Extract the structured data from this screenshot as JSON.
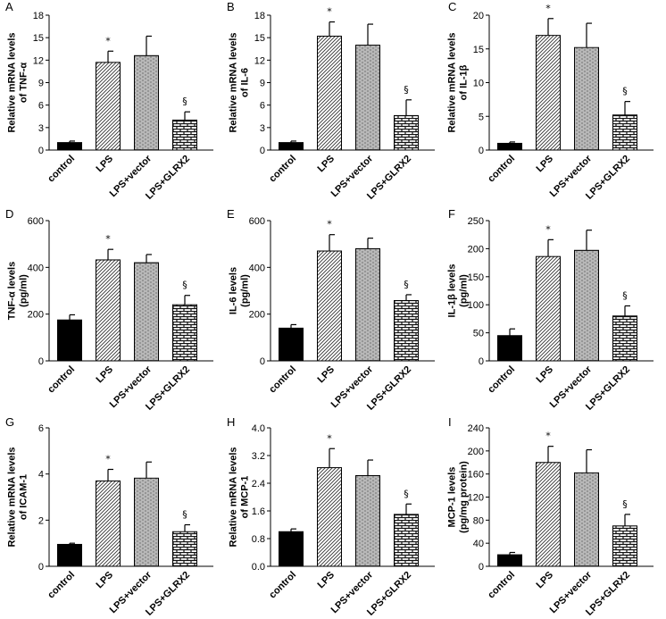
{
  "chart_data": [
    {
      "panel": "A",
      "type": "bar",
      "categories": [
        "control",
        "LPS",
        "LPS+vector",
        "LPS+GLRX2"
      ],
      "values": [
        1.0,
        11.7,
        12.6,
        4.0
      ],
      "errors": [
        0.2,
        1.5,
        2.6,
        1.1
      ],
      "ylabel": [
        "Relative mRNA levels",
        "of TNF-α"
      ],
      "ylim": [
        0,
        18
      ],
      "yticks": [
        "0",
        "3",
        "6",
        "9",
        "12",
        "15",
        "18"
      ],
      "annotations": [
        "",
        "*",
        "",
        "§"
      ]
    },
    {
      "panel": "B",
      "type": "bar",
      "categories": [
        "control",
        "LPS",
        "LPS+vector",
        "LPS+GLRX2"
      ],
      "values": [
        1.0,
        15.2,
        14.0,
        4.6
      ],
      "errors": [
        0.2,
        1.9,
        2.8,
        2.1
      ],
      "ylabel": [
        "Relative mRNA levels",
        "of IL-6"
      ],
      "ylim": [
        0,
        18
      ],
      "yticks": [
        "0",
        "3",
        "6",
        "9",
        "12",
        "15",
        "18"
      ],
      "annotations": [
        "",
        "*",
        "",
        "§"
      ]
    },
    {
      "panel": "C",
      "type": "bar",
      "categories": [
        "control",
        "LPS",
        "LPS+vector",
        "LPS+GLRX2"
      ],
      "values": [
        1.0,
        17.0,
        15.2,
        5.2
      ],
      "errors": [
        0.2,
        2.5,
        3.6,
        2.0
      ],
      "ylabel": [
        "Relative mRNA levels",
        "of IL-1β"
      ],
      "ylim": [
        0,
        20
      ],
      "yticks": [
        "0",
        "5",
        "10",
        "15",
        "20"
      ],
      "annotations": [
        "",
        "*",
        "",
        "§"
      ]
    },
    {
      "panel": "D",
      "type": "bar",
      "categories": [
        "control",
        "LPS",
        "LPS+vector",
        "LPS+GLRX2"
      ],
      "values": [
        175,
        432,
        420,
        240
      ],
      "errors": [
        22,
        45,
        35,
        40
      ],
      "ylabel": [
        "TNF-α levels",
        "(pg/ml)"
      ],
      "ylim": [
        0,
        600
      ],
      "yticks": [
        "0",
        "200",
        "400",
        "600"
      ],
      "annotations": [
        "",
        "*",
        "",
        "§"
      ]
    },
    {
      "panel": "E",
      "type": "bar",
      "categories": [
        "control",
        "LPS",
        "LPS+vector",
        "LPS+GLRX2"
      ],
      "values": [
        140,
        470,
        480,
        258
      ],
      "errors": [
        15,
        70,
        45,
        25
      ],
      "ylabel": [
        "IL-6 levels",
        "(pg/ml)"
      ],
      "ylim": [
        0,
        600
      ],
      "yticks": [
        "0",
        "200",
        "400",
        "600"
      ],
      "annotations": [
        "",
        "*",
        "",
        "§"
      ]
    },
    {
      "panel": "F",
      "type": "bar",
      "categories": [
        "control",
        "LPS",
        "LPS+vector",
        "LPS+GLRX2"
      ],
      "values": [
        45,
        186,
        197,
        80
      ],
      "errors": [
        12,
        30,
        36,
        18
      ],
      "ylabel": [
        "IL-1β levels",
        "(pg/ml)"
      ],
      "ylim": [
        0,
        250
      ],
      "yticks": [
        "0",
        "50",
        "100",
        "150",
        "200",
        "250"
      ],
      "annotations": [
        "",
        "*",
        "",
        "§"
      ]
    },
    {
      "panel": "G",
      "type": "bar",
      "categories": [
        "control",
        "LPS",
        "LPS+vector",
        "LPS+GLRX2"
      ],
      "values": [
        0.95,
        3.7,
        3.82,
        1.5
      ],
      "errors": [
        0.05,
        0.5,
        0.7,
        0.3
      ],
      "ylabel": [
        "Relative mRNA levels",
        "of ICAM-1"
      ],
      "ylim": [
        0,
        6
      ],
      "yticks": [
        "0",
        "2",
        "4",
        "6"
      ],
      "annotations": [
        "",
        "*",
        "",
        "§"
      ]
    },
    {
      "panel": "H",
      "type": "bar",
      "categories": [
        "control",
        "LPS",
        "LPS+vector",
        "LPS+GLRX2"
      ],
      "values": [
        1.0,
        2.85,
        2.62,
        1.5
      ],
      "errors": [
        0.08,
        0.55,
        0.45,
        0.3
      ],
      "ylabel": [
        "Relative mRNA levels",
        "of MCP-1"
      ],
      "ylim": [
        0,
        4
      ],
      "yticks": [
        "0.0",
        "0.8",
        "1.6",
        "2.4",
        "3.2",
        "4.0"
      ],
      "annotations": [
        "",
        "*",
        "",
        "§"
      ]
    },
    {
      "panel": "I",
      "type": "bar",
      "categories": [
        "control",
        "LPS",
        "LPS+vector",
        "LPS+GLRX2"
      ],
      "values": [
        20,
        180,
        162,
        70
      ],
      "errors": [
        4,
        28,
        40,
        20
      ],
      "ylabel": [
        "MCP-1 levels",
        "(pg/mg protein)"
      ],
      "ylim": [
        0,
        240
      ],
      "yticks": [
        "0",
        "40",
        "80",
        "120",
        "160",
        "200",
        "240"
      ],
      "annotations": [
        "",
        "*",
        "",
        "§"
      ]
    }
  ]
}
